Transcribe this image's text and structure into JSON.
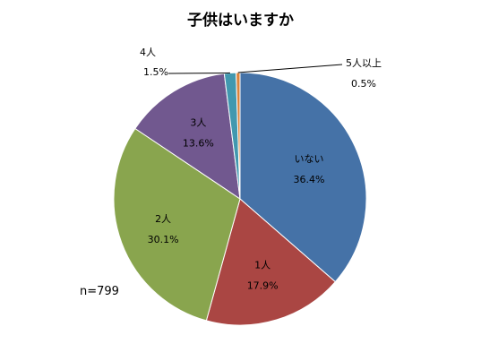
{
  "chart_data": {
    "type": "pie",
    "title": "子供はいますか",
    "sample_size_label": "n=799",
    "categories": [
      "いない",
      "1人",
      "2人",
      "3人",
      "4人",
      "5人以上"
    ],
    "values": [
      36.4,
      17.9,
      30.1,
      13.6,
      1.5,
      0.5
    ],
    "value_labels": [
      "36.4%",
      "17.9%",
      "30.1%",
      "13.6%",
      "1.5%",
      "0.5%"
    ],
    "colors": [
      "#4572A7",
      "#AA4643",
      "#89A54E",
      "#71588F",
      "#4198AF",
      "#DB843D"
    ],
    "start_angle_deg": 0,
    "direction": "clockwise",
    "legend": "none",
    "labels_position": "inside-with-leaders-for-small"
  }
}
